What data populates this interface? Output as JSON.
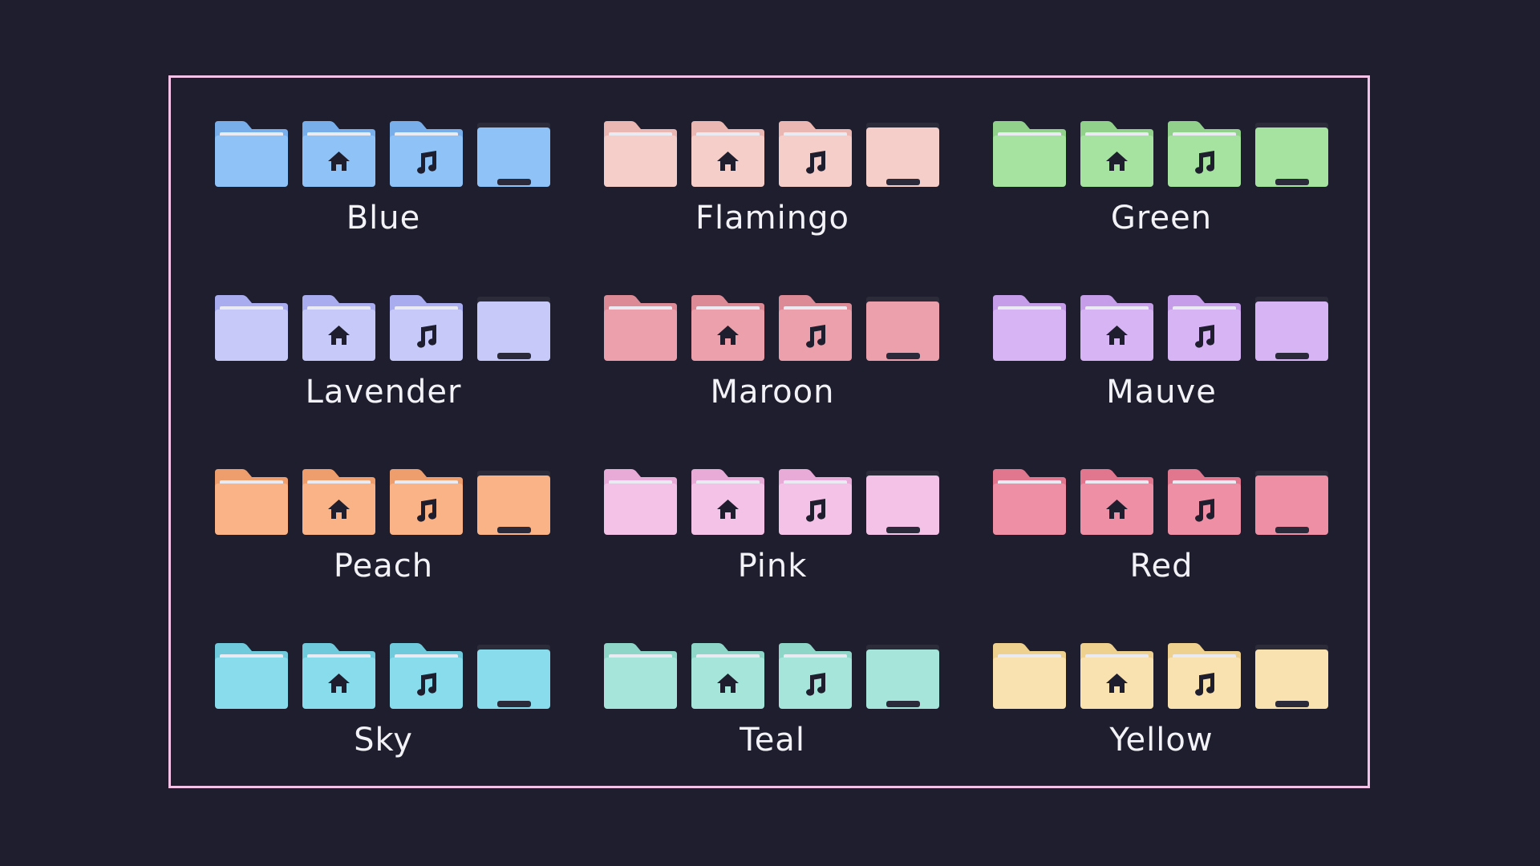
{
  "themes": [
    {
      "name": "Blue",
      "color": "#8fc2f6",
      "tab": "#78afea"
    },
    {
      "name": "Flamingo",
      "color": "#f5cdc9",
      "tab": "#ebb7b3"
    },
    {
      "name": "Green",
      "color": "#a6e3a1",
      "tab": "#92d18c"
    },
    {
      "name": "Lavender",
      "color": "#c7caf8",
      "tab": "#a9adef"
    },
    {
      "name": "Maroon",
      "color": "#eba0ac",
      "tab": "#dd8a97"
    },
    {
      "name": "Mauve",
      "color": "#d7b4f3",
      "tab": "#c59de9"
    },
    {
      "name": "Peach",
      "color": "#fab387",
      "tab": "#ee9e6d"
    },
    {
      "name": "Pink",
      "color": "#f5c2e7",
      "tab": "#e8abd8"
    },
    {
      "name": "Red",
      "color": "#ee8fa5",
      "tab": "#e0778f"
    },
    {
      "name": "Sky",
      "color": "#89dceb",
      "tab": "#6fcadc"
    },
    {
      "name": "Teal",
      "color": "#a6e6da",
      "tab": "#8dd6c8"
    },
    {
      "name": "Yellow",
      "color": "#f9e2af",
      "tab": "#efd18f"
    }
  ],
  "folder_variants": [
    {
      "kind": "plain",
      "icon": "folder-icon"
    },
    {
      "kind": "home",
      "icon": "home-folder-icon"
    },
    {
      "kind": "music",
      "icon": "music-folder-icon"
    },
    {
      "kind": "open",
      "icon": "open-folder-icon"
    }
  ],
  "glyph_color": "#1e1e2e",
  "frame_color": "#f5c2e7",
  "background_color": "#1e1e2e"
}
